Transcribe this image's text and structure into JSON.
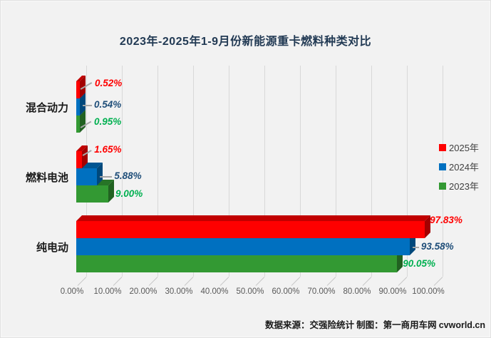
{
  "page": {
    "background": "#F2F2F2"
  },
  "chart_data": {
    "type": "bar",
    "orientation": "horizontal",
    "style": "3d",
    "title": "2023年-2025年1-9月份新能源重卡燃料种类对比",
    "categories": [
      "混合动力",
      "燃料电池",
      "纯电动"
    ],
    "series": [
      {
        "name": "2025年",
        "color": "#FE0000",
        "label_color": "#FF0000",
        "values": [
          0.52,
          1.65,
          97.83
        ],
        "labels": [
          "0.52%",
          "1.65%",
          "97.83%"
        ]
      },
      {
        "name": "2024年",
        "color": "#0070C0",
        "label_color": "#1F4E79",
        "values": [
          0.54,
          5.88,
          93.58
        ],
        "labels": [
          "0.54%",
          "5.88%",
          "93.58%"
        ]
      },
      {
        "name": "2023年",
        "color": "#339933",
        "label_color": "#00B050",
        "values": [
          0.95,
          9.0,
          90.05
        ],
        "labels": [
          "0.95%",
          "9.00%",
          "90.05%"
        ]
      }
    ],
    "x_axis": {
      "min": 0,
      "max": 100,
      "grid": true,
      "ticks": [
        "0.00%",
        "10.00%",
        "20.00%",
        "30.00%",
        "40.00%",
        "50.00%",
        "60.00%",
        "70.00%",
        "80.00%",
        "90.00%",
        "100.00%"
      ]
    },
    "legend": {
      "position": "right",
      "items": [
        "2025年",
        "2024年",
        "2023年"
      ]
    },
    "source": "数据来源：交强险统计 制图：第一商用车网",
    "site": "cvworld.cn",
    "colors": {
      "title": "#223A54",
      "grid": "#D8D8D8",
      "tick_text": "#595959",
      "category_text": "#1A1A1A",
      "legend_text": "#404040",
      "leader": "#A6A6A6",
      "source_text": "#1A1A1A"
    }
  }
}
